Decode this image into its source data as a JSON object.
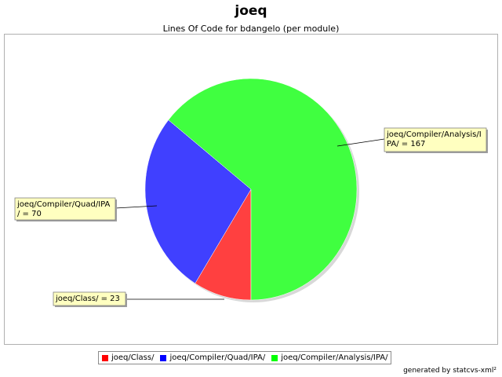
{
  "chart_data": {
    "type": "pie",
    "title": "joeq",
    "subtitle": "Lines Of Code for bdangelo (per module)",
    "slices": [
      {
        "name": "joeq/Class/",
        "value": 23,
        "color": "#ff4040",
        "label_lines": [
          "joeq/Class/ = 23"
        ]
      },
      {
        "name": "joeq/Compiler/Quad/IPA/",
        "value": 70,
        "color": "#4040ff",
        "label_lines": [
          "joeq/Compiler/Quad/IPA",
          "/ = 70"
        ]
      },
      {
        "name": "joeq/Compiler/Analysis/IPA/",
        "value": 167,
        "color": "#40ff40",
        "label_lines": [
          "joeq/Compiler/Analysis/I",
          "PA/ = 167"
        ]
      }
    ],
    "legend_position": "bottom"
  },
  "footer": "generated by statcvs-xml²"
}
